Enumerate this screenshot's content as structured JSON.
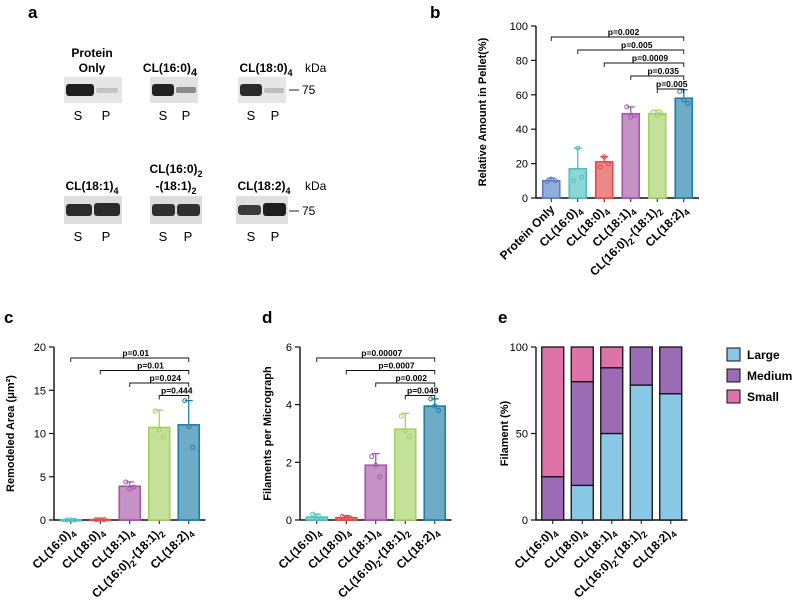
{
  "panels": {
    "a": "a",
    "b": "b",
    "c": "c",
    "d": "d",
    "e": "e"
  },
  "gels": {
    "kda_label": "kDa",
    "marker": "75",
    "lane_s": "S",
    "lane_p": "P",
    "items": [
      {
        "title_main": "Protein",
        "title_line2": "Only",
        "title_base": "",
        "title_sub": "",
        "title_extra": ""
      },
      {
        "title_main": "",
        "title_line2": "",
        "title_base": "CL(16:0)",
        "title_sub": "4",
        "title_extra": ""
      },
      {
        "title_main": "",
        "title_line2": "",
        "title_base": "CL(18:0)",
        "title_sub": "4",
        "title_extra": ""
      },
      {
        "title_main": "",
        "title_line2": "",
        "title_base": "CL(18:1)",
        "title_sub": "4",
        "title_extra": ""
      },
      {
        "title_main": "",
        "title_line2": "",
        "title_base": "CL(16:0)",
        "title_sub": "2",
        "title_extra": "-(18:1)"
      },
      {
        "title_main": "",
        "title_line2": "",
        "title_base": "CL(18:2)",
        "title_sub": "4",
        "title_extra": ""
      }
    ]
  },
  "chart_data": [
    {
      "id": "b",
      "type": "bar",
      "ylabel": "Relative Amount in Pellet(%)",
      "ylim": [
        0,
        100
      ],
      "yticks": [
        0,
        20,
        40,
        60,
        80,
        100
      ],
      "categories": [
        {
          "base": "Protein Only",
          "sub": "",
          "mid": "",
          "sub2": ""
        },
        {
          "base": "CL(16:0)",
          "sub": "4",
          "mid": "",
          "sub2": ""
        },
        {
          "base": "CL(18:0)",
          "sub": "4",
          "mid": "",
          "sub2": ""
        },
        {
          "base": "CL(18:1)",
          "sub": "4",
          "mid": "",
          "sub2": ""
        },
        {
          "base": "CL(16:0)",
          "sub": "2",
          "mid": "-(18:1)",
          "sub2": "2"
        },
        {
          "base": "CL(18:2)",
          "sub": "4",
          "mid": "",
          "sub2": ""
        }
      ],
      "values": [
        10,
        17,
        21,
        49,
        49,
        58
      ],
      "errors": [
        1.5,
        12,
        3,
        4,
        2,
        5
      ],
      "points": [
        [
          9.5,
          11,
          10
        ],
        [
          10,
          29,
          12
        ],
        [
          18,
          24,
          20
        ],
        [
          53,
          47,
          48
        ],
        [
          50,
          48,
          49
        ],
        [
          62,
          57,
          55
        ]
      ],
      "colors": [
        "#5b7fc4",
        "#4ec0c2",
        "#e44848",
        "#a557a8",
        "#a3d160",
        "#1f7ea8"
      ],
      "comparisons": [
        {
          "from": 0,
          "to": 5,
          "label": "p=0.002"
        },
        {
          "from": 1,
          "to": 5,
          "label": "p=0.005"
        },
        {
          "from": 2,
          "to": 5,
          "label": "p=0.0009"
        },
        {
          "from": 3,
          "to": 5,
          "label": "p=0.035"
        },
        {
          "from": 4,
          "to": 5,
          "label": "p=0.005"
        }
      ]
    },
    {
      "id": "c",
      "type": "bar",
      "ylabel": "Remodeled Area (μm²)",
      "ylim": [
        0,
        20
      ],
      "yticks": [
        0,
        5,
        10,
        15,
        20
      ],
      "categories": [
        {
          "base": "CL(16:0)",
          "sub": "4",
          "mid": "",
          "sub2": ""
        },
        {
          "base": "CL(18:0)",
          "sub": "4",
          "mid": "",
          "sub2": ""
        },
        {
          "base": "CL(18:1)",
          "sub": "4",
          "mid": "",
          "sub2": ""
        },
        {
          "base": "CL(16:0)",
          "sub": "2",
          "mid": "-(18:1)",
          "sub2": "2"
        },
        {
          "base": "CL(18:2)",
          "sub": "4",
          "mid": "",
          "sub2": ""
        }
      ],
      "values": [
        0,
        0.05,
        3.9,
        10.7,
        11
      ],
      "errors": [
        0.05,
        0.05,
        0.5,
        2,
        2.8
      ],
      "points": [
        [
          0,
          0,
          0
        ],
        [
          0.05,
          0.05,
          0.05
        ],
        [
          4.4,
          3.6,
          3.8
        ],
        [
          12.6,
          10.4,
          9.6
        ],
        [
          13.8,
          10.8,
          8.4
        ]
      ],
      "colors": [
        "#4ec0c2",
        "#e44848",
        "#a557a8",
        "#a3d160",
        "#1f7ea8"
      ],
      "comparisons": [
        {
          "from": 0,
          "to": 4,
          "label": "p=0.01"
        },
        {
          "from": 1,
          "to": 4,
          "label": "p=0.01"
        },
        {
          "from": 2,
          "to": 4,
          "label": "p=0.024"
        },
        {
          "from": 3,
          "to": 4,
          "label": "p=0.444"
        }
      ]
    },
    {
      "id": "d",
      "type": "bar",
      "ylabel": "Filaments per Micrograph",
      "ylim": [
        0,
        6
      ],
      "yticks": [
        0,
        2,
        4,
        6
      ],
      "categories": [
        {
          "base": "CL(16:0)",
          "sub": "4",
          "mid": "",
          "sub2": ""
        },
        {
          "base": "CL(18:0)",
          "sub": "4",
          "mid": "",
          "sub2": ""
        },
        {
          "base": "CL(18:1)",
          "sub": "4",
          "mid": "",
          "sub2": ""
        },
        {
          "base": "CL(16:0)",
          "sub": "2",
          "mid": "-(18:1)",
          "sub2": "2"
        },
        {
          "base": "CL(18:2)",
          "sub": "4",
          "mid": "",
          "sub2": ""
        }
      ],
      "values": [
        0.1,
        0.08,
        1.9,
        3.15,
        3.95
      ],
      "errors": [
        0.1,
        0.07,
        0.4,
        0.55,
        0.25
      ],
      "points": [
        [
          0.2,
          0.05,
          0.05
        ],
        [
          0.12,
          0.05,
          0.07
        ],
        [
          2.2,
          1.9,
          1.5
        ],
        [
          3.6,
          3.1,
          2.9
        ],
        [
          4.2,
          3.95,
          3.8
        ]
      ],
      "colors": [
        "#4ec0c2",
        "#e44848",
        "#a557a8",
        "#a3d160",
        "#1f7ea8"
      ],
      "comparisons": [
        {
          "from": 0,
          "to": 4,
          "label": "p=0.00007"
        },
        {
          "from": 1,
          "to": 4,
          "label": "p=0.0007"
        },
        {
          "from": 2,
          "to": 4,
          "label": "p=0.002"
        },
        {
          "from": 3,
          "to": 4,
          "label": "p=0.049"
        }
      ]
    },
    {
      "id": "e",
      "type": "stacked-bar",
      "ylabel": "Filament (%)",
      "ylim": [
        0,
        100
      ],
      "yticks": [
        0,
        50,
        100
      ],
      "categories": [
        {
          "base": "CL(16:0)",
          "sub": "4",
          "mid": "",
          "sub2": ""
        },
        {
          "base": "CL(18:0)",
          "sub": "4",
          "mid": "",
          "sub2": ""
        },
        {
          "base": "CL(18:1)",
          "sub": "4",
          "mid": "",
          "sub2": ""
        },
        {
          "base": "CL(16:0)",
          "sub": "2",
          "mid": "-(18:1)",
          "sub2": "2"
        },
        {
          "base": "CL(18:2)",
          "sub": "4",
          "mid": "",
          "sub2": ""
        }
      ],
      "series": [
        {
          "name": "Large",
          "color": "#88c8e6",
          "values": [
            0,
            20,
            50,
            78,
            73
          ]
        },
        {
          "name": "Medium",
          "color": "#9b6bb5",
          "values": [
            25,
            60,
            38,
            22,
            27
          ]
        },
        {
          "name": "Small",
          "color": "#df73a8",
          "values": [
            75,
            20,
            12,
            0,
            0
          ]
        }
      ],
      "legend": "right"
    }
  ]
}
